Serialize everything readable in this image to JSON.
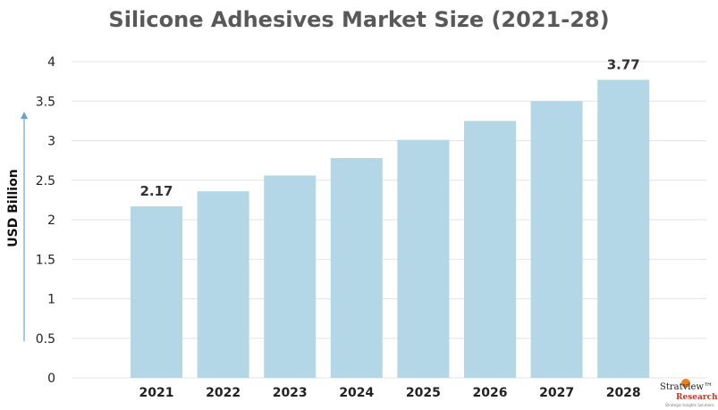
{
  "chart_data": {
    "type": "bar",
    "title": "Silicone Adhesives Market Size (2021-28)",
    "ylabel": "USD Billion",
    "xlabel": "",
    "categories": [
      "2021",
      "2022",
      "2023",
      "2024",
      "2025",
      "2026",
      "2027",
      "2028"
    ],
    "values": [
      2.17,
      2.36,
      2.56,
      2.78,
      3.01,
      3.25,
      3.5,
      3.77
    ],
    "data_labels": {
      "2021": "2.17",
      "2028": "3.77"
    },
    "yticks": [
      "0",
      "0.5",
      "1",
      "1.5",
      "2",
      "2.5",
      "3",
      "3.5",
      "4"
    ],
    "ylim": [
      0,
      4
    ],
    "grid": true,
    "bar_color": "#b3d7e6",
    "grid_color": "#e3e3e3",
    "axis_arrow_color": "#6aa5c9"
  },
  "logo": {
    "line1": "Stratview™",
    "line2": "Research",
    "line3": "Strategic Insights Solutions"
  }
}
